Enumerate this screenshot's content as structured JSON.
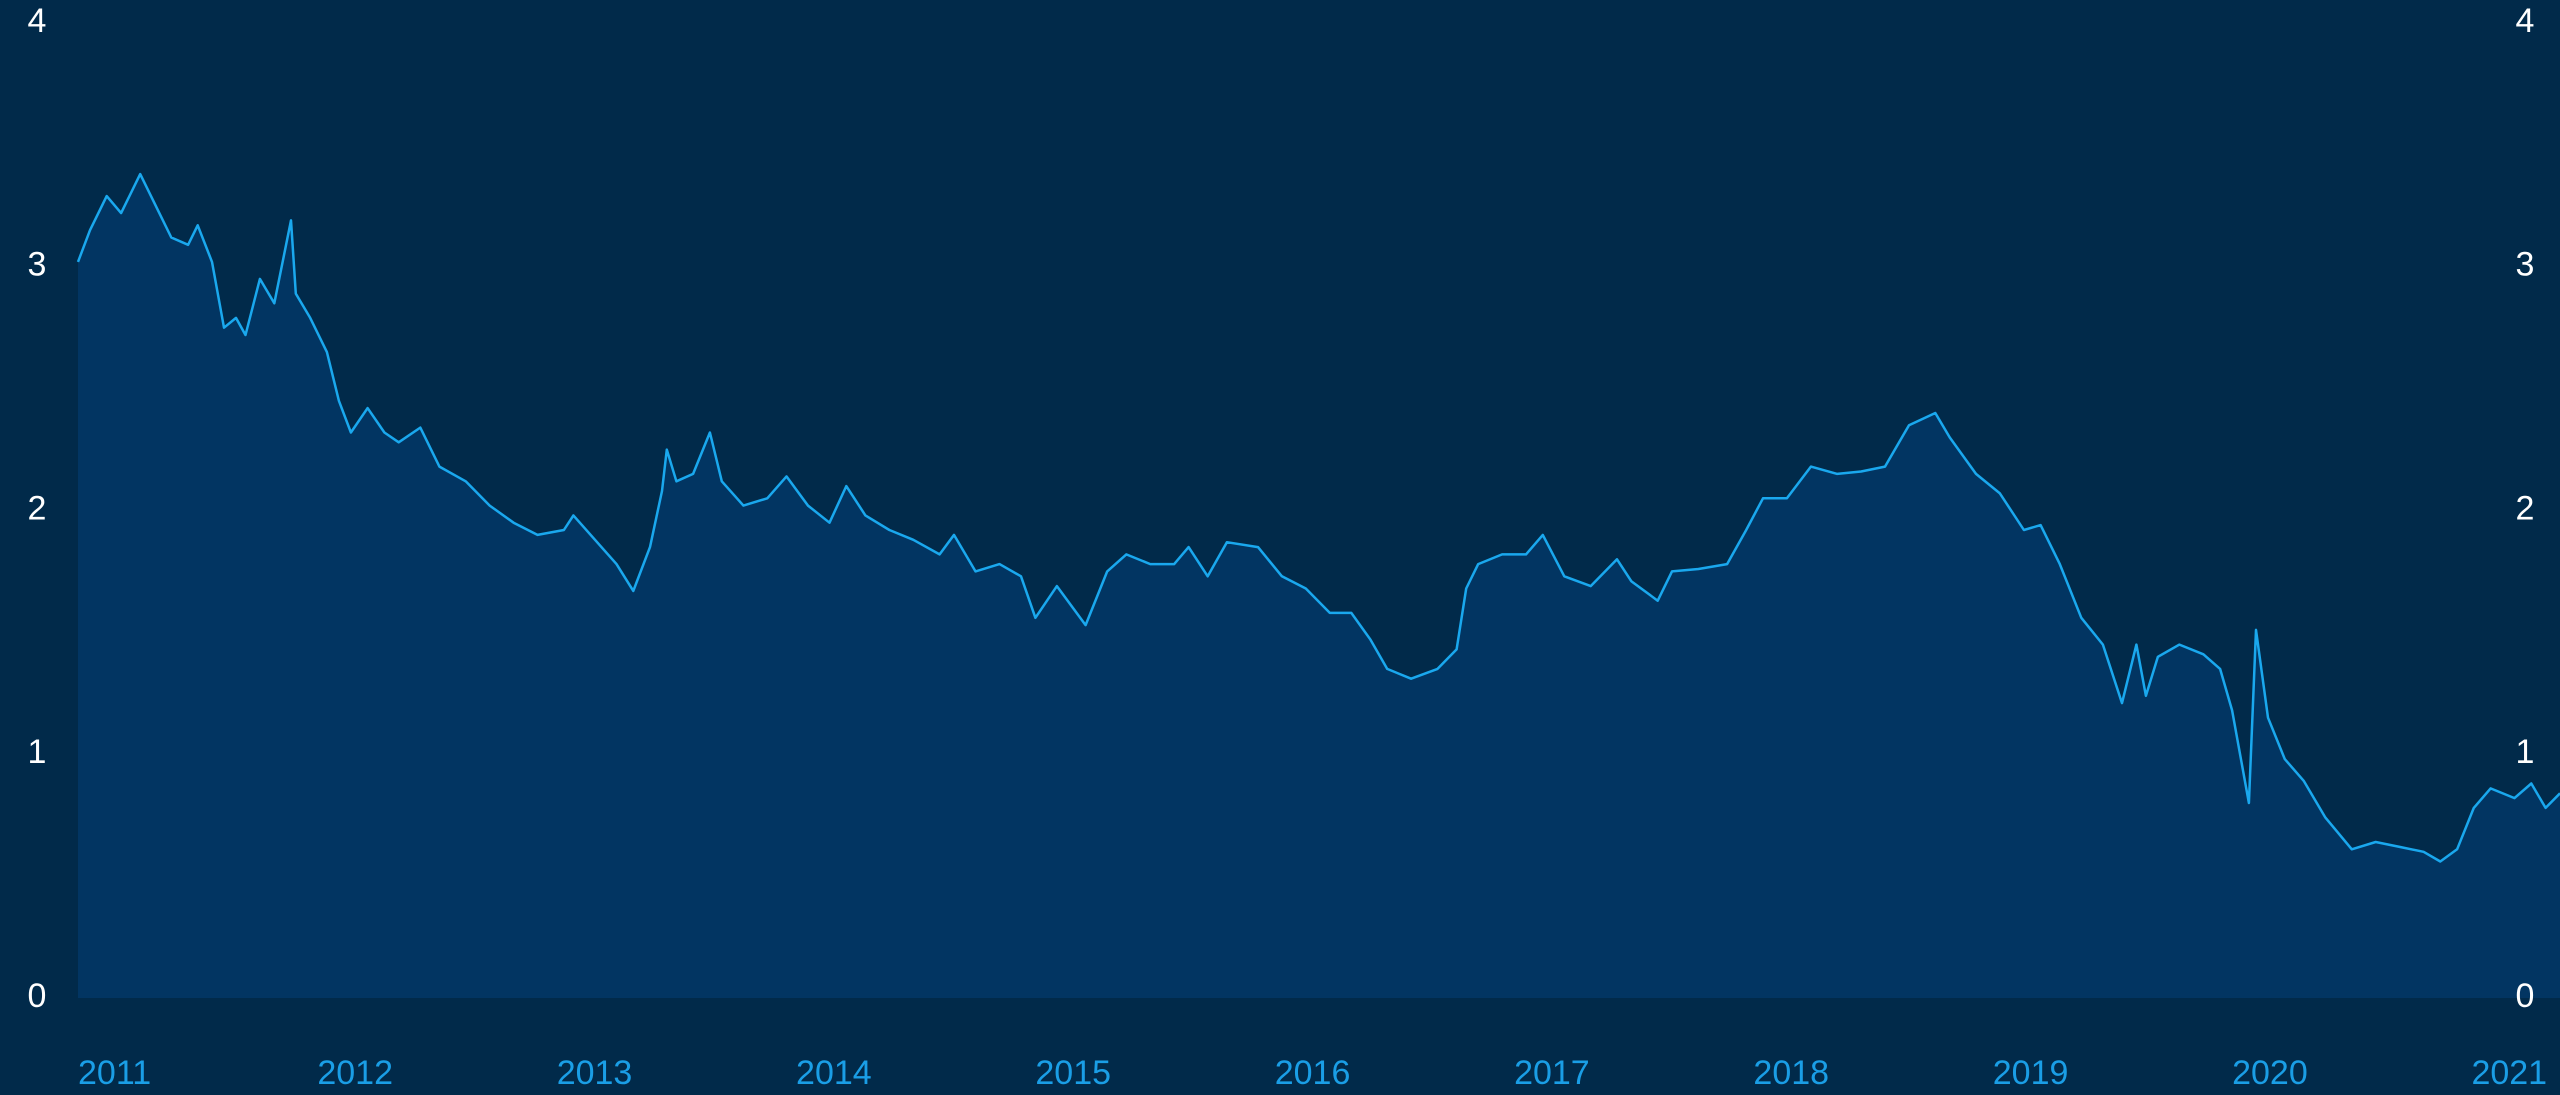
{
  "chart_data": {
    "type": "area",
    "x": [
      2011.0,
      2011.05,
      2011.12,
      2011.18,
      2011.26,
      2011.32,
      2011.39,
      2011.46,
      2011.5,
      2011.56,
      2011.61,
      2011.66,
      2011.7,
      2011.76,
      2011.82,
      2011.89,
      2011.91,
      2011.97,
      2012.04,
      2012.09,
      2012.14,
      2012.21,
      2012.28,
      2012.34,
      2012.43,
      2012.51,
      2012.62,
      2012.72,
      2012.82,
      2012.92,
      2013.03,
      2013.07,
      2013.16,
      2013.25,
      2013.32,
      2013.39,
      2013.44,
      2013.46,
      2013.5,
      2013.57,
      2013.64,
      2013.69,
      2013.78,
      2013.88,
      2013.96,
      2014.05,
      2014.14,
      2014.21,
      2014.29,
      2014.39,
      2014.49,
      2014.6,
      2014.66,
      2014.75,
      2014.85,
      2014.94,
      2015.0,
      2015.09,
      2015.21,
      2015.3,
      2015.38,
      2015.48,
      2015.58,
      2015.64,
      2015.72,
      2015.8,
      2015.93,
      2016.03,
      2016.13,
      2016.23,
      2016.32,
      2016.4,
      2016.47,
      2016.57,
      2016.68,
      2016.76,
      2016.8,
      2016.85,
      2016.95,
      2017.05,
      2017.12,
      2017.21,
      2017.32,
      2017.43,
      2017.49,
      2017.6,
      2017.66,
      2017.77,
      2017.89,
      2017.97,
      2018.04,
      2018.14,
      2018.24,
      2018.35,
      2018.45,
      2018.55,
      2018.65,
      2018.76,
      2018.82,
      2018.93,
      2019.03,
      2019.13,
      2019.2,
      2019.28,
      2019.37,
      2019.46,
      2019.54,
      2019.6,
      2019.64,
      2019.69,
      2019.78,
      2019.88,
      2019.95,
      2020.0,
      2020.07,
      2020.1,
      2020.15,
      2020.22,
      2020.3,
      2020.39,
      2020.5,
      2020.6,
      2020.7,
      2020.8,
      2020.87,
      2020.94,
      2021.01,
      2021.08,
      2021.18,
      2021.25,
      2021.31,
      2021.37
    ],
    "values": [
      3.02,
      3.15,
      3.29,
      3.22,
      3.38,
      3.26,
      3.12,
      3.09,
      3.17,
      3.02,
      2.75,
      2.79,
      2.72,
      2.95,
      2.85,
      3.19,
      2.89,
      2.79,
      2.65,
      2.45,
      2.32,
      2.42,
      2.32,
      2.28,
      2.34,
      2.18,
      2.12,
      2.02,
      1.95,
      1.9,
      1.92,
      1.98,
      1.88,
      1.78,
      1.67,
      1.85,
      2.08,
      2.25,
      2.12,
      2.15,
      2.32,
      2.12,
      2.02,
      2.05,
      2.14,
      2.02,
      1.95,
      2.1,
      1.98,
      1.92,
      1.88,
      1.82,
      1.9,
      1.75,
      1.78,
      1.73,
      1.56,
      1.69,
      1.53,
      1.75,
      1.82,
      1.78,
      1.78,
      1.85,
      1.73,
      1.87,
      1.85,
      1.73,
      1.68,
      1.58,
      1.58,
      1.47,
      1.35,
      1.31,
      1.35,
      1.43,
      1.68,
      1.78,
      1.82,
      1.82,
      1.9,
      1.73,
      1.69,
      1.8,
      1.71,
      1.63,
      1.75,
      1.76,
      1.78,
      1.92,
      2.05,
      2.05,
      2.18,
      2.15,
      2.16,
      2.18,
      2.35,
      2.4,
      2.3,
      2.15,
      2.07,
      1.92,
      1.94,
      1.78,
      1.56,
      1.45,
      1.21,
      1.45,
      1.24,
      1.4,
      1.45,
      1.41,
      1.35,
      1.18,
      0.8,
      1.51,
      1.15,
      0.98,
      0.89,
      0.74,
      0.61,
      0.64,
      0.62,
      0.6,
      0.56,
      0.61,
      0.78,
      0.86,
      0.82,
      0.88,
      0.78,
      0.84
    ],
    "color": "#1aa8ee",
    "xlim": [
      2011,
      2021.37
    ],
    "xticks": [
      2011,
      2012,
      2013,
      2014,
      2015,
      2016,
      2017,
      2018,
      2019,
      2020,
      2021
    ],
    "ylim": [
      0,
      4
    ],
    "yticks": [
      0,
      1,
      2,
      3,
      4
    ]
  }
}
